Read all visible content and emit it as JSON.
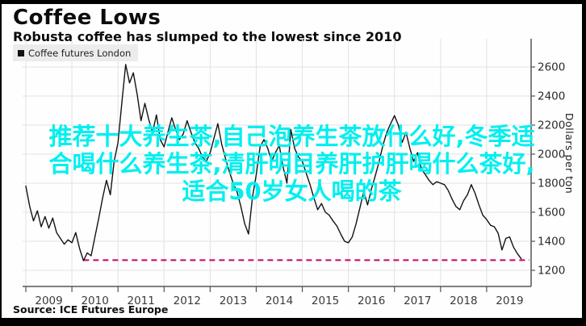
{
  "header": {
    "title": "Coffee Lows",
    "subtitle": "Robusta coffee has slumped to the lowest since 2010"
  },
  "legend": {
    "label": "Coffee futures London",
    "marker_color": "#111111"
  },
  "overlay": {
    "color": "#00efef",
    "lines": [
      "推荐十大养生茶,自己泡养生茶放什么好,冬季适",
      "合喝什么养生茶,清肝明目养肝护肝喝什么茶好,",
      "适合50岁女人喝的茶"
    ]
  },
  "source": {
    "label": "Source: ICE Futures Europe"
  },
  "chart_data": {
    "type": "line",
    "title": "Coffee Lows",
    "subtitle": "Robusta coffee has slumped to the lowest since 2010",
    "series_name": "Coffee futures London",
    "ylabel": "Dollars per ton",
    "xlabel": "",
    "x_tick_labels": [
      "2009",
      "2010",
      "2011",
      "2012",
      "2013",
      "2014",
      "2015",
      "2016",
      "2017",
      "2018",
      "2019"
    ],
    "y_ticks": [
      1200,
      1400,
      1600,
      1800,
      2000,
      2200,
      2400,
      2600
    ],
    "ylim": [
      1090,
      2790
    ],
    "x_unit": "month",
    "x_start": "2009-01",
    "x_end": "2019-10",
    "grid": true,
    "legend_position": "top-left",
    "line_color": "#131313",
    "reference_line": {
      "value": 1270,
      "style": "dashed",
      "color": "#cc0066",
      "starts_at_month_index": 15,
      "meaning": "2010 low"
    },
    "values": [
      1780,
      1640,
      1540,
      1610,
      1500,
      1570,
      1490,
      1560,
      1460,
      1420,
      1380,
      1410,
      1390,
      1460,
      1350,
      1266,
      1320,
      1300,
      1430,
      1560,
      1700,
      1820,
      1720,
      1950,
      2080,
      2350,
      2617,
      2490,
      2560,
      2410,
      2230,
      2350,
      2240,
      2150,
      2270,
      2100,
      2050,
      2150,
      2250,
      2170,
      2100,
      2140,
      2230,
      2150,
      2080,
      2040,
      1980,
      1950,
      2010,
      2110,
      2210,
      2070,
      1970,
      1880,
      1800,
      1740,
      1640,
      1520,
      1450,
      1700,
      1860,
      2050,
      2100,
      2040,
      1950,
      2010,
      2060,
      1910,
      1800,
      2170,
      2040,
      1980,
      1950,
      1870,
      1790,
      1700,
      1617,
      1660,
      1600,
      1580,
      1540,
      1505,
      1450,
      1400,
      1390,
      1430,
      1520,
      1630,
      1745,
      1650,
      1760,
      1850,
      1950,
      2060,
      2150,
      2210,
      2265,
      2200,
      2080,
      2150,
      2040,
      1950,
      2010,
      1900,
      1860,
      1820,
      1790,
      1810,
      1800,
      1790,
      1750,
      1690,
      1640,
      1617,
      1680,
      1720,
      1790,
      1730,
      1650,
      1580,
      1550,
      1510,
      1500,
      1455,
      1340,
      1420,
      1430,
      1360,
      1315,
      1280
    ]
  }
}
